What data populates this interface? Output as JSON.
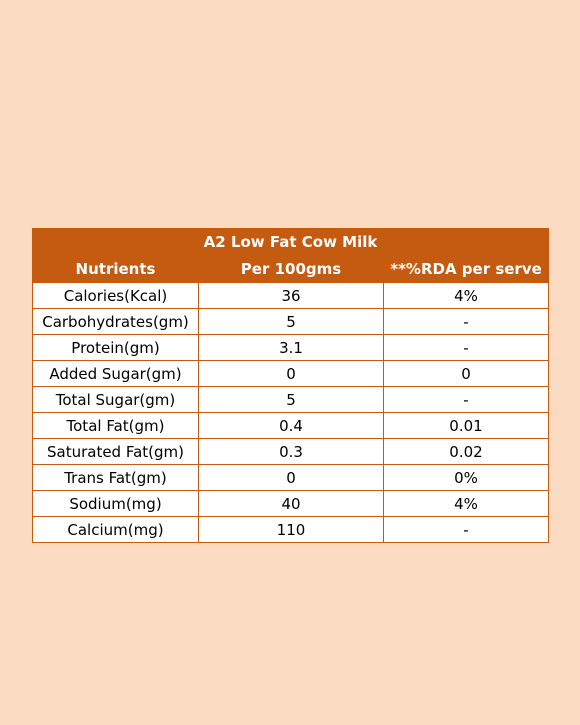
{
  "table": {
    "title": "A2 Low Fat Cow Milk",
    "headers": [
      "Nutrients",
      "Per 100gms",
      "**%RDA per serve"
    ],
    "rows": [
      [
        "Calories(Kcal)",
        "36",
        "4%"
      ],
      [
        "Carbohydrates(gm)",
        "5",
        "-"
      ],
      [
        "Protein(gm)",
        "3.1",
        "-"
      ],
      [
        "Added Sugar(gm)",
        "0",
        "0"
      ],
      [
        "Total Sugar(gm)",
        "5",
        "-"
      ],
      [
        "Total Fat(gm)",
        "0.4",
        "0.01"
      ],
      [
        "Saturated Fat(gm)",
        "0.3",
        "0.02"
      ],
      [
        "Trans Fat(gm)",
        "0",
        "0%"
      ],
      [
        "Sodium(mg)",
        "40",
        "4%"
      ],
      [
        "Calcium(mg)",
        "110",
        "-"
      ]
    ]
  },
  "colors": {
    "background": "#fbdcc3",
    "header_fill": "#c55a11",
    "border": "#c55a11",
    "cell_fill": "#ffffff"
  }
}
